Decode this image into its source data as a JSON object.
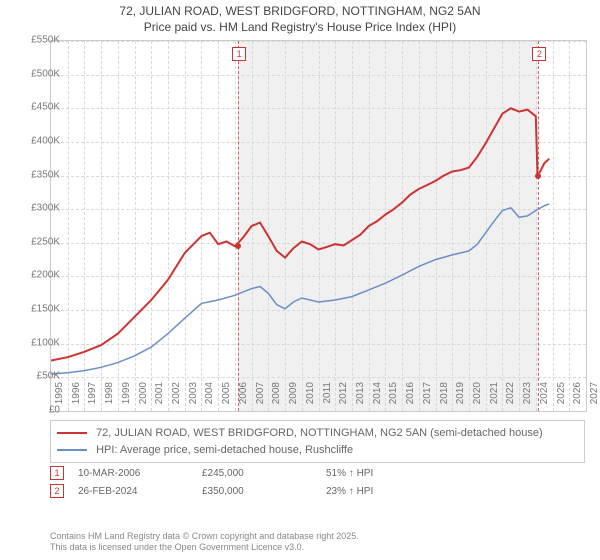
{
  "title_line1": "72, JULIAN ROAD, WEST BRIDGFORD, NOTTINGHAM, NG2 5AN",
  "title_line2": "Price paid vs. HM Land Registry's House Price Index (HPI)",
  "chart": {
    "type": "line",
    "background_color": "#ffffff",
    "shaded_color": "#f0f0f0",
    "grid_color": "#d8d8d8",
    "border_color": "#cccccc",
    "xlim": [
      1995,
      2027
    ],
    "ylim": [
      0,
      550000
    ],
    "xtick_step": 1,
    "ytick_step": 50000,
    "ylabels": [
      "£0",
      "£50K",
      "£100K",
      "£150K",
      "£200K",
      "£250K",
      "£300K",
      "£350K",
      "£400K",
      "£450K",
      "£500K",
      "£550K"
    ],
    "xlabels": [
      "1995",
      "1996",
      "1997",
      "1998",
      "1999",
      "2000",
      "2001",
      "2002",
      "2003",
      "2004",
      "2005",
      "2006",
      "2007",
      "2008",
      "2009",
      "2010",
      "2011",
      "2012",
      "2013",
      "2014",
      "2015",
      "2016",
      "2017",
      "2018",
      "2019",
      "2020",
      "2021",
      "2022",
      "2023",
      "2024",
      "2025",
      "2026",
      "2027"
    ],
    "series": [
      {
        "name": "property",
        "color": "#cc3333",
        "width": 2,
        "points": [
          [
            1995,
            75000
          ],
          [
            1996,
            80000
          ],
          [
            1997,
            88000
          ],
          [
            1998,
            98000
          ],
          [
            1999,
            115000
          ],
          [
            2000,
            140000
          ],
          [
            2001,
            165000
          ],
          [
            2002,
            195000
          ],
          [
            2003,
            235000
          ],
          [
            2004,
            260000
          ],
          [
            2004.5,
            265000
          ],
          [
            2005,
            248000
          ],
          [
            2005.5,
            252000
          ],
          [
            2006,
            245000
          ],
          [
            2006.5,
            258000
          ],
          [
            2007,
            275000
          ],
          [
            2007.5,
            280000
          ],
          [
            2008,
            260000
          ],
          [
            2008.5,
            238000
          ],
          [
            2009,
            228000
          ],
          [
            2009.5,
            242000
          ],
          [
            2010,
            252000
          ],
          [
            2010.5,
            248000
          ],
          [
            2011,
            240000
          ],
          [
            2011.5,
            244000
          ],
          [
            2012,
            248000
          ],
          [
            2012.5,
            246000
          ],
          [
            2013,
            254000
          ],
          [
            2013.5,
            262000
          ],
          [
            2014,
            275000
          ],
          [
            2014.5,
            282000
          ],
          [
            2015,
            292000
          ],
          [
            2015.5,
            300000
          ],
          [
            2016,
            310000
          ],
          [
            2016.5,
            322000
          ],
          [
            2017,
            330000
          ],
          [
            2017.5,
            336000
          ],
          [
            2018,
            342000
          ],
          [
            2018.5,
            350000
          ],
          [
            2019,
            356000
          ],
          [
            2019.5,
            358000
          ],
          [
            2020,
            362000
          ],
          [
            2020.5,
            378000
          ],
          [
            2021,
            398000
          ],
          [
            2021.5,
            420000
          ],
          [
            2022,
            442000
          ],
          [
            2022.5,
            450000
          ],
          [
            2023,
            445000
          ],
          [
            2023.5,
            448000
          ],
          [
            2024,
            438000
          ],
          [
            2024.1,
            350000
          ],
          [
            2024.3,
            358000
          ],
          [
            2024.5,
            368000
          ],
          [
            2024.8,
            375000
          ]
        ]
      },
      {
        "name": "hpi",
        "color": "#6b8fc9",
        "width": 1.5,
        "points": [
          [
            1995,
            55000
          ],
          [
            1996,
            57000
          ],
          [
            1997,
            60000
          ],
          [
            1998,
            65000
          ],
          [
            1999,
            72000
          ],
          [
            2000,
            82000
          ],
          [
            2001,
            95000
          ],
          [
            2002,
            115000
          ],
          [
            2003,
            138000
          ],
          [
            2004,
            160000
          ],
          [
            2005,
            165000
          ],
          [
            2006,
            172000
          ],
          [
            2007,
            182000
          ],
          [
            2007.5,
            185000
          ],
          [
            2008,
            175000
          ],
          [
            2008.5,
            158000
          ],
          [
            2009,
            152000
          ],
          [
            2009.5,
            162000
          ],
          [
            2010,
            168000
          ],
          [
            2011,
            162000
          ],
          [
            2012,
            165000
          ],
          [
            2013,
            170000
          ],
          [
            2014,
            180000
          ],
          [
            2015,
            190000
          ],
          [
            2016,
            202000
          ],
          [
            2017,
            215000
          ],
          [
            2018,
            225000
          ],
          [
            2019,
            232000
          ],
          [
            2020,
            238000
          ],
          [
            2020.5,
            248000
          ],
          [
            2021,
            265000
          ],
          [
            2021.5,
            282000
          ],
          [
            2022,
            298000
          ],
          [
            2022.5,
            302000
          ],
          [
            2023,
            288000
          ],
          [
            2023.5,
            290000
          ],
          [
            2024,
            298000
          ],
          [
            2024.5,
            305000
          ],
          [
            2024.8,
            308000
          ]
        ]
      }
    ],
    "markers": [
      {
        "label": "1",
        "x": 2006.19,
        "y": 245000
      },
      {
        "label": "2",
        "x": 2024.15,
        "y": 350000
      }
    ],
    "shaded_regions": [
      [
        2006.19,
        2024.15
      ]
    ]
  },
  "legend": {
    "item1": "72, JULIAN ROAD, WEST BRIDGFORD, NOTTINGHAM, NG2 5AN (semi-detached house)",
    "item2": "HPI: Average price, semi-detached house, Rushcliffe"
  },
  "events": [
    {
      "n": "1",
      "date": "10-MAR-2006",
      "price": "£245,000",
      "delta": "51% ↑ HPI"
    },
    {
      "n": "2",
      "date": "26-FEB-2024",
      "price": "£350,000",
      "delta": "23% ↑ HPI"
    }
  ],
  "footer_line1": "Contains HM Land Registry data © Crown copyright and database right 2025.",
  "footer_line2": "This data is licensed under the Open Government Licence v3.0."
}
